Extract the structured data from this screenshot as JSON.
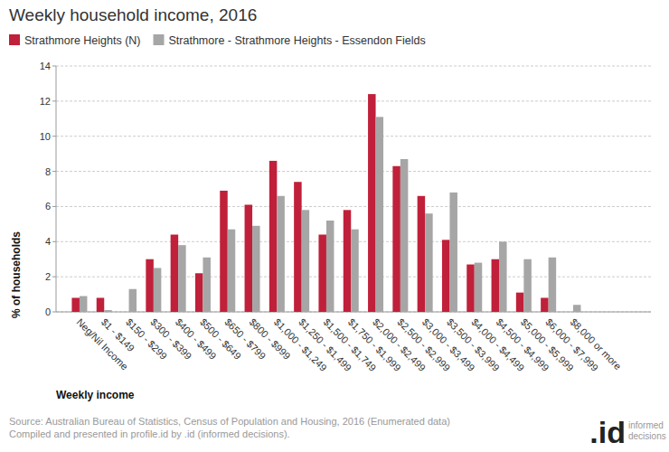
{
  "chart_data": {
    "type": "bar",
    "title": "Weekly household income, 2016",
    "x_label": "Weekly income",
    "y_label": "% of households",
    "categories": [
      "Neg/Nil Income",
      "$1 - $149",
      "$150 - $299",
      "$300 - $399",
      "$400 - $499",
      "$500 - $649",
      "$650 - $799",
      "$800 - $999",
      "$1,000 - $1,249",
      "$1,250 - $1,499",
      "$1,500 - $1,749",
      "$1,750 - $1,999",
      "$2,000 - $2,499",
      "$2,500 - $2,999",
      "$3,000 - $3,499",
      "$3,500 - $3,999",
      "$4,000 - $4,499",
      "$4,500 - $4,999",
      "$5,000 - $5,999",
      "$6,000 - $7,999",
      "$8,000 or more"
    ],
    "series": [
      {
        "name": "Strathmore Heights (N)",
        "color": "#c0203a",
        "values": [
          0.8,
          0.8,
          0,
          3.0,
          4.4,
          2.2,
          6.9,
          6.1,
          8.6,
          7.4,
          4.4,
          5.8,
          12.4,
          8.3,
          6.6,
          4.1,
          2.7,
          3.0,
          1.1,
          0.8,
          0
        ]
      },
      {
        "name": "Strathmore - Strathmore Heights - Essendon Fields",
        "color": "#a6a6a6",
        "values": [
          0.9,
          0.1,
          1.3,
          2.5,
          3.8,
          3.1,
          4.7,
          4.9,
          6.6,
          5.8,
          5.2,
          4.7,
          11.1,
          8.7,
          5.6,
          6.8,
          2.8,
          4.0,
          3.0,
          3.1,
          0.4
        ]
      }
    ],
    "ylim": [
      0,
      14
    ],
    "yticks": [
      0,
      2,
      4,
      6,
      8,
      10,
      12,
      14
    ],
    "grid": true,
    "legend": "top",
    "annotations": [
      "Source: Australian Bureau of Statistics, Census of Population and Housing, 2016 (Enumerated data)",
      "Compiled and presented in profile.id by .id (informed decisions).",
      ".id",
      "informed",
      "decisions"
    ]
  }
}
